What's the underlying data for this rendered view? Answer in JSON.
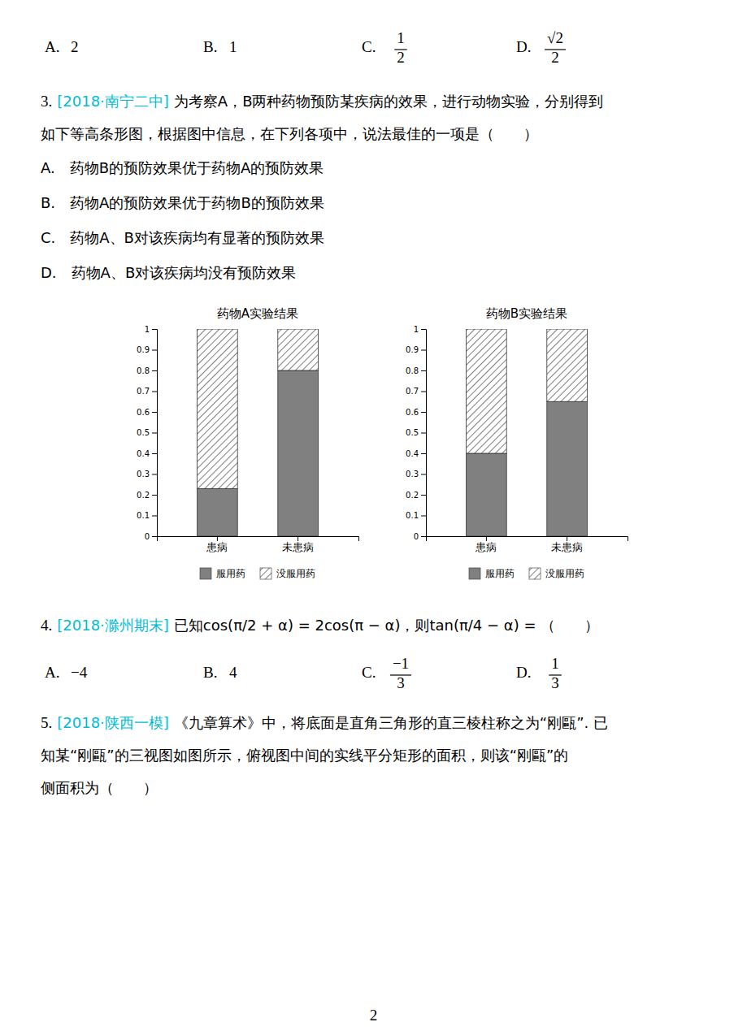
{
  "chart_data": [
    {
      "type": "bar",
      "stacked": true,
      "title": "药物A实验结果",
      "categories": [
        "患病",
        "未患病"
      ],
      "series": [
        {
          "name": "服用药",
          "color": "#808080",
          "values": [
            0.23,
            0.8
          ]
        },
        {
          "name": "没服用药",
          "color": "#ffffff",
          "values": [
            0.77,
            0.2
          ]
        }
      ],
      "ylim": [
        0,
        1
      ],
      "yticks": [
        0,
        0.1,
        0.2,
        0.3,
        0.4,
        0.5,
        0.6,
        0.7,
        0.8,
        0.9,
        1
      ],
      "legend": "bottom"
    },
    {
      "type": "bar",
      "stacked": true,
      "title": "药物B实验结果",
      "categories": [
        "患病",
        "未患病"
      ],
      "series": [
        {
          "name": "服用药",
          "color": "#808080",
          "values": [
            0.4,
            0.65
          ]
        },
        {
          "name": "没服用药",
          "color": "#ffffff",
          "values": [
            0.6,
            0.35
          ]
        }
      ],
      "ylim": [
        0,
        1
      ],
      "yticks": [
        0,
        0.1,
        0.2,
        0.3,
        0.4,
        0.5,
        0.6,
        0.7,
        0.8,
        0.9,
        1
      ],
      "legend": "bottom"
    }
  ],
  "annotations": [
    {
      "kind": "choices",
      "items": [
        {
          "label": "A.",
          "text": "2"
        },
        {
          "label": "B.",
          "text": "1"
        },
        {
          "label": "C.",
          "numerator": "1",
          "denominator": "2"
        },
        {
          "label": "D.",
          "numerator": "√2",
          "denominator": "2"
        }
      ]
    },
    {
      "kind": "question",
      "number": "3.",
      "source": "[2018·南宁二中]",
      "color": "#00bcd4",
      "lines": [
        "为考察A，B两种药物预防某疾病的效果，进行动物实验，分别得到",
        "如下等高条形图，根据图中信息，在下列各项中，说法最佳的一项是（　　）"
      ]
    },
    {
      "kind": "lines",
      "lines": [
        "A.　药物B的预防效果优于药物A的预防效果",
        "B.　药物A的预防效果优于药物B的预防效果",
        "C.　药物A、B对该疾病均有显著的预防效果",
        "D.　药物A、B对该疾病均没有预防效果"
      ]
    },
    {
      "kind": "question",
      "number": "4.",
      "source": "[2018·滁州期末]",
      "color": "#00bcd4",
      "lines": [
        "已知cos(π/2 + α) = 2cos(π − α)，则tan(π/4 − α) = （　　）"
      ]
    },
    {
      "kind": "choices",
      "items": [
        {
          "label": "A.",
          "text": "−4"
        },
        {
          "label": "B.",
          "text": "4"
        },
        {
          "label": "C.",
          "numerator": "−1",
          "denominator": "3"
        },
        {
          "label": "D.",
          "numerator": "1",
          "denominator": "3"
        }
      ]
    },
    {
      "kind": "question",
      "number": "5.",
      "source": "[2018·陕西一模]",
      "color": "#00bcd4",
      "lines": [
        "《九章算术》中，将底面是直角三角形的直三棱柱称之为“刚甌”. 已",
        "知某“刚甌”的三视图如图所示，俯视图中间的实线平分矩形的面积，则该“刚甌”的",
        "侧面积为（　　）"
      ]
    },
    {
      "kind": "page_number",
      "text": "2"
    }
  ]
}
